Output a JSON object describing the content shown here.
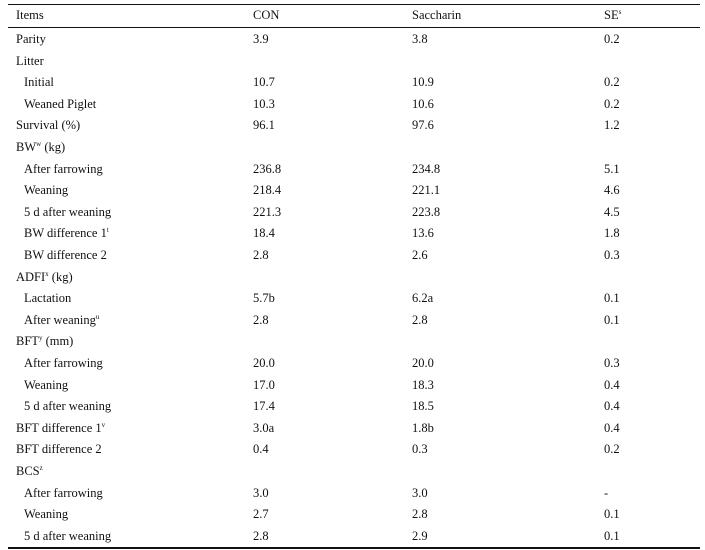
{
  "headers": {
    "items": "Items",
    "con": "CON",
    "saccharin": "Saccharin",
    "se": "SE",
    "se_sup": "s"
  },
  "rows": [
    {
      "label": "Parity",
      "sup": "",
      "indent": false,
      "con": "3.9",
      "saccharin": "3.8",
      "se": "0.2"
    },
    {
      "label": "Litter",
      "sup": "",
      "indent": false,
      "con": "",
      "saccharin": "",
      "se": ""
    },
    {
      "label": "Initial",
      "sup": "",
      "indent": true,
      "con": "10.7",
      "saccharin": "10.9",
      "se": "0.2"
    },
    {
      "label": "Weaned Piglet",
      "sup": "",
      "indent": true,
      "con": "10.3",
      "saccharin": "10.6",
      "se": "0.2"
    },
    {
      "label": "Survival (%)",
      "sup": "",
      "indent": false,
      "con": "96.1",
      "saccharin": "97.6",
      "se": "1.2"
    },
    {
      "label": "BW",
      "sup": "w",
      "suffix": " (kg)",
      "indent": false,
      "con": "",
      "saccharin": "",
      "se": ""
    },
    {
      "label": "After farrowing",
      "sup": "",
      "indent": true,
      "con": "236.8",
      "saccharin": "234.8",
      "se": "5.1"
    },
    {
      "label": "Weaning",
      "sup": "",
      "indent": true,
      "con": "218.4",
      "saccharin": "221.1",
      "se": "4.6"
    },
    {
      "label": "5 d after weaning",
      "sup": "",
      "indent": true,
      "con": "221.3",
      "saccharin": "223.8",
      "se": "4.5"
    },
    {
      "label": "BW difference 1",
      "sup": "t",
      "indent": true,
      "con": "18.4",
      "saccharin": "13.6",
      "se": "1.8"
    },
    {
      "label": "BW difference 2",
      "sup": "",
      "indent": true,
      "con": "2.8",
      "saccharin": "2.6",
      "se": "0.3"
    },
    {
      "label": "ADFI",
      "sup": "x",
      "suffix": " (kg)",
      "indent": false,
      "con": "",
      "saccharin": "",
      "se": ""
    },
    {
      "label": "Lactation",
      "sup": "",
      "indent": true,
      "con": "5.7b",
      "saccharin": "6.2a",
      "se": "0.1"
    },
    {
      "label": "After weaning",
      "sup": "u",
      "indent": true,
      "con": "2.8",
      "saccharin": "2.8",
      "se": "0.1"
    },
    {
      "label": "BFT",
      "sup": "y",
      "suffix": " (mm)",
      "indent": false,
      "con": "",
      "saccharin": "",
      "se": ""
    },
    {
      "label": "After farrowing",
      "sup": "",
      "indent": true,
      "con": "20.0",
      "saccharin": "20.0",
      "se": "0.3"
    },
    {
      "label": "Weaning",
      "sup": "",
      "indent": true,
      "con": "17.0",
      "saccharin": "18.3",
      "se": "0.4"
    },
    {
      "label": "5 d after weaning",
      "sup": "",
      "indent": true,
      "con": "17.4",
      "saccharin": "18.5",
      "se": "0.4"
    },
    {
      "label": "BFT difference 1",
      "sup": "v",
      "indent": false,
      "con": "3.0a",
      "saccharin": "1.8b",
      "se": "0.4"
    },
    {
      "label": "BFT difference 2",
      "sup": "",
      "indent": false,
      "con": "0.4",
      "saccharin": "0.3",
      "se": "0.2"
    },
    {
      "label": "BCS",
      "sup": "z",
      "indent": false,
      "con": "",
      "saccharin": "",
      "se": ""
    },
    {
      "label": "After farrowing",
      "sup": "",
      "indent": true,
      "con": "3.0",
      "saccharin": "3.0",
      "se": "-"
    },
    {
      "label": "Weaning",
      "sup": "",
      "indent": true,
      "con": "2.7",
      "saccharin": "2.8",
      "se": "0.1"
    },
    {
      "label": "5 d after weaning",
      "sup": "",
      "indent": true,
      "con": "2.8",
      "saccharin": "2.9",
      "se": "0.1"
    }
  ]
}
